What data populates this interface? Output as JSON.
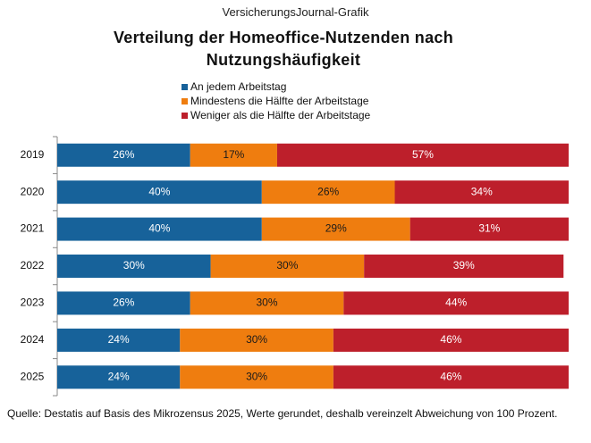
{
  "chart_data": {
    "type": "stacked-bar-horizontal",
    "header": "VersicherungsJournal-Grafik",
    "title": "Verteilung der Homeoffice-Nutzenden nach Nutzungshäufigkeit",
    "categories": [
      "2019",
      "2020",
      "2021",
      "2022",
      "2023",
      "2024",
      "2025"
    ],
    "series": [
      {
        "name": "An jedem Arbeitstag",
        "color": "#17629a",
        "label_color": "#ffffff",
        "values": [
          26,
          40,
          40,
          30,
          26,
          24,
          24
        ],
        "value_labels": [
          "26%",
          "40%",
          "40%",
          "30%",
          "26%",
          "24%",
          "24%"
        ]
      },
      {
        "name": "Mindestens die Hälfte der Arbeitstage",
        "color": "#ef7d0f",
        "label_color": "#1a1a1a",
        "values": [
          17,
          26,
          29,
          30,
          30,
          30,
          30
        ],
        "value_labels": [
          "17%",
          "26%",
          "29%",
          "30%",
          "30%",
          "30%",
          "30%"
        ]
      },
      {
        "name": "Weniger als die Hälfte der Arbeitstage",
        "color": "#bd1f2b",
        "label_color": "#ffffff",
        "values": [
          57,
          34,
          31,
          39,
          44,
          46,
          46
        ],
        "value_labels": [
          "57%",
          "34%",
          "31%",
          "39%",
          "44%",
          "46%",
          "46%"
        ]
      }
    ],
    "xlim": [
      0,
      100
    ],
    "source": "Quelle: Destatis auf Basis des Mikrozensus 2025, Werte gerundet, deshalb vereinzelt Abweichung von 100 Prozent."
  }
}
